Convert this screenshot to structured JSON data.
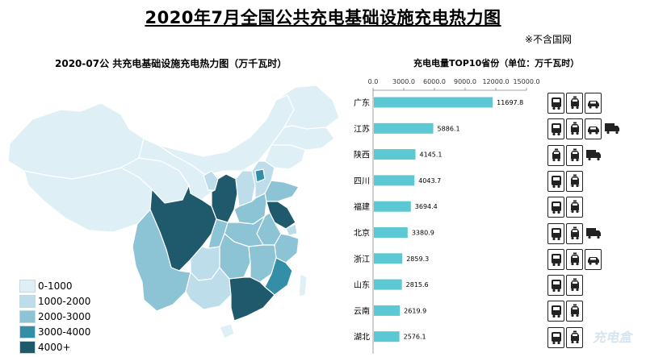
{
  "header": {
    "title": "2020年7月全国公共充电基础设施充电热力图",
    "note": "※不含国网"
  },
  "map": {
    "title": "2020-07公 共充电基础设施充电热力图（万千瓦时）",
    "legend": [
      {
        "label": "0-1000",
        "color": "#deeff6"
      },
      {
        "label": "1000-2000",
        "color": "#bcdde9"
      },
      {
        "label": "2000-3000",
        "color": "#8cc3d5"
      },
      {
        "label": "3000-4000",
        "color": "#338fa7"
      },
      {
        "label": "4000+",
        "color": "#1f5a6c"
      }
    ]
  },
  "chart_data": {
    "type": "bar",
    "orientation": "horizontal",
    "title": "充电电量TOP10省份（单位：万千瓦时）",
    "categories": [
      "广东",
      "江苏",
      "陕西",
      "四川",
      "福建",
      "北京",
      "浙江",
      "山东",
      "云南",
      "湖北"
    ],
    "values": [
      11697.8,
      5886.1,
      4145.1,
      4043.7,
      3694.4,
      3380.9,
      2859.3,
      2815.6,
      2619.9,
      2576.1
    ],
    "value_labels": [
      "11697.8",
      "5886.1",
      "4145.1",
      "4043.7",
      "3694.4",
      "3380.9",
      "2859.3",
      "2815.6",
      "2619.9",
      "2576.1"
    ],
    "xlim": [
      0,
      15000
    ],
    "xticks": [
      0,
      3000,
      6000,
      9000,
      12000,
      15000
    ],
    "xtick_labels": [
      "0.0",
      "3000.0",
      "6000.0",
      "9000.0",
      "12000.0",
      "15000.0"
    ],
    "bar_color": "#5bc8d3",
    "grid": false
  },
  "vehicle_icons": [
    [
      "bus-icon",
      "taxi-icon",
      "car-icon"
    ],
    [
      "bus-icon",
      "taxi-icon",
      "car-icon",
      "truck-icon"
    ],
    [
      "taxi-icon",
      "taxi-icon",
      "truck-icon"
    ],
    [
      "bus-icon",
      "taxi-icon"
    ],
    [
      "bus-icon",
      "taxi-icon"
    ],
    [
      "bus-icon",
      "taxi-icon",
      "truck-icon"
    ],
    [
      "bus-icon",
      "taxi-icon",
      "car-icon"
    ],
    [
      "bus-icon",
      "taxi-icon"
    ],
    [
      "bus-icon",
      "taxi-icon"
    ],
    [
      "bus-icon",
      "taxi-icon"
    ]
  ]
}
